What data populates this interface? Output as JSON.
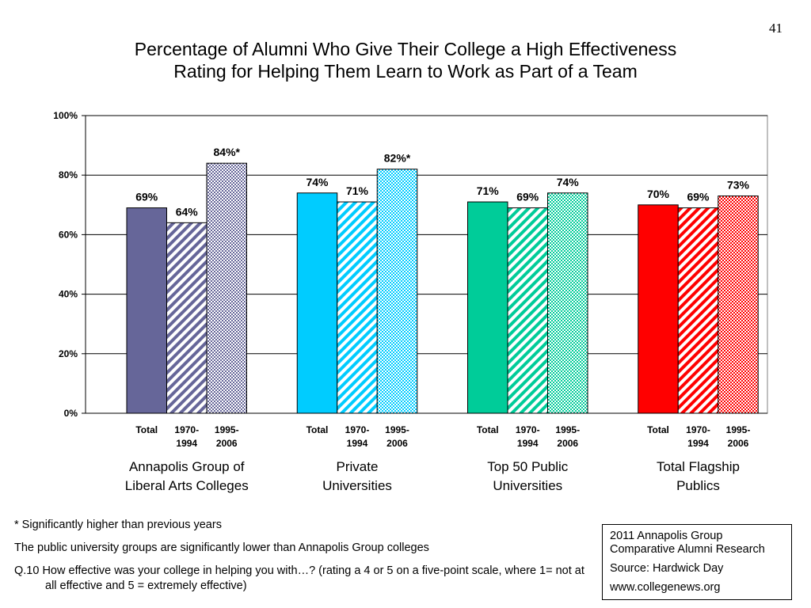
{
  "page_number": "41",
  "title_lines": [
    "Percentage of Alumni Who Give Their College a High Effectiveness",
    "Rating for Helping Them Learn to Work as Part of a Team"
  ],
  "chart_data": {
    "type": "bar",
    "ylim": [
      0,
      100
    ],
    "y_ticks": [
      "0%",
      "20%",
      "40%",
      "60%",
      "80%",
      "100%"
    ],
    "grid": true,
    "legend": "none",
    "bar_categories": [
      "Total",
      "1970-\n1994",
      "1995-\n2006"
    ],
    "groups": [
      {
        "name": "Annapolis Group of\nLiberal Arts Colleges",
        "color": "#666699",
        "values": [
          69,
          64,
          84
        ],
        "labels": [
          "69%",
          "64%",
          "84%*"
        ]
      },
      {
        "name": "Private\nUniversities",
        "color": "#00ccff",
        "values": [
          74,
          71,
          82
        ],
        "labels": [
          "74%",
          "71%",
          "82%*"
        ]
      },
      {
        "name": "Top 50 Public\nUniversities",
        "color": "#00cc99",
        "values": [
          71,
          69,
          74
        ],
        "labels": [
          "71%",
          "69%",
          "74%"
        ]
      },
      {
        "name": "Total Flagship\nPublics",
        "color": "#ff0000",
        "values": [
          70,
          69,
          73
        ],
        "labels": [
          "70%",
          "69%",
          "73%"
        ]
      }
    ]
  },
  "footnotes": [
    "* Significantly higher than previous years",
    "The public university groups are significantly lower than Annapolis Group colleges",
    "Q.10 How effective was your college in helping you with…?  (rating a 4 or 5 on a five-point scale, where 1= not at all effective and 5 = extremely effective)"
  ],
  "source_box": {
    "lines": [
      "2011 Annapolis Group",
      "Comparative Alumni Research"
    ],
    "source": "Source: Hardwick Day",
    "url": "www.collegenews.org"
  }
}
